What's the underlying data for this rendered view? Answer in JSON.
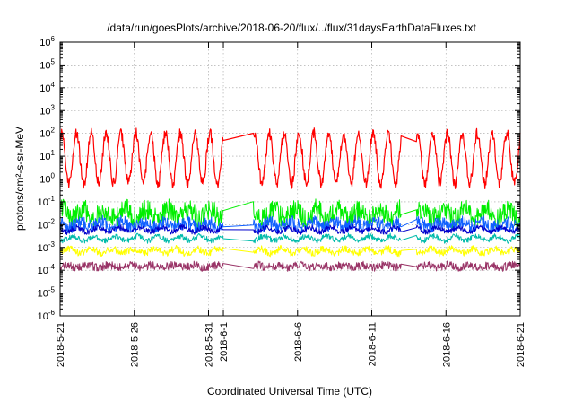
{
  "chart_data": {
    "type": "line",
    "title": "/data/run/goesPlots/archive/2018-06-20/flux/../flux/31daysEarthDataFluxes.txt",
    "xlabel": "Coordinated Universal Time (UTC)",
    "ylabel": "protons/cm²-s-sr-MeV",
    "y_scale": "log",
    "ylim": [
      1e-06,
      1000000.0
    ],
    "xlim": [
      "2018-05-21",
      "2018-06-21"
    ],
    "x_ticks": [
      "2018-5-21",
      "2018-5-26",
      "2018-5-31",
      "2018-6-1",
      "2018-6-6",
      "2018-6-11",
      "2018-6-16",
      "2018-6-21"
    ],
    "y_ticks": [
      {
        "mant": "10",
        "exp": "-6"
      },
      {
        "mant": "10",
        "exp": "-5"
      },
      {
        "mant": "10",
        "exp": "-4"
      },
      {
        "mant": "10",
        "exp": "-3"
      },
      {
        "mant": "10",
        "exp": "-2"
      },
      {
        "mant": "10",
        "exp": "-1"
      },
      {
        "mant": "10",
        "exp": "0"
      },
      {
        "mant": "10",
        "exp": "1"
      },
      {
        "mant": "10",
        "exp": "2"
      },
      {
        "mant": "10",
        "exp": "3"
      },
      {
        "mant": "10",
        "exp": "4"
      },
      {
        "mant": "10",
        "exp": "5"
      },
      {
        "mant": "10",
        "exp": "6"
      }
    ],
    "grid": true,
    "legend": "none",
    "data_gaps": [
      [
        "2018-06-01",
        "2018-06-03"
      ],
      [
        "2018-06-13",
        "2018-06-14"
      ]
    ],
    "series": [
      {
        "color": "#ff0000",
        "median": 8,
        "log_amplitude": 1.1,
        "diurnal": true,
        "noise_log": 0.25,
        "min": 0.1,
        "max": 200
      },
      {
        "color": "#00ee00",
        "median": 0.03,
        "log_amplitude": 0.2,
        "diurnal": false,
        "noise_log": 0.45,
        "min": 0.001,
        "max": 0.2
      },
      {
        "color": "#1060ff",
        "median": 0.01,
        "log_amplitude": 0.1,
        "diurnal": false,
        "noise_log": 0.3,
        "min": 0.003,
        "max": 0.05
      },
      {
        "color": "#0000cc",
        "median": 0.006,
        "log_amplitude": 0.1,
        "diurnal": false,
        "noise_log": 0.12,
        "min": 0.003,
        "max": 0.02
      },
      {
        "color": "#00bbaa",
        "median": 0.0025,
        "log_amplitude": 0.1,
        "diurnal": false,
        "noise_log": 0.12,
        "min": 0.001,
        "max": 0.006
      },
      {
        "color": "#ffff00",
        "median": 0.0007,
        "log_amplitude": 0.1,
        "diurnal": false,
        "noise_log": 0.15,
        "min": 0.0002,
        "max": 0.002
      },
      {
        "color": "#993366",
        "median": 0.00015,
        "log_amplitude": 0.05,
        "diurnal": false,
        "noise_log": 0.18,
        "min": 5e-05,
        "max": 0.0005
      }
    ]
  }
}
